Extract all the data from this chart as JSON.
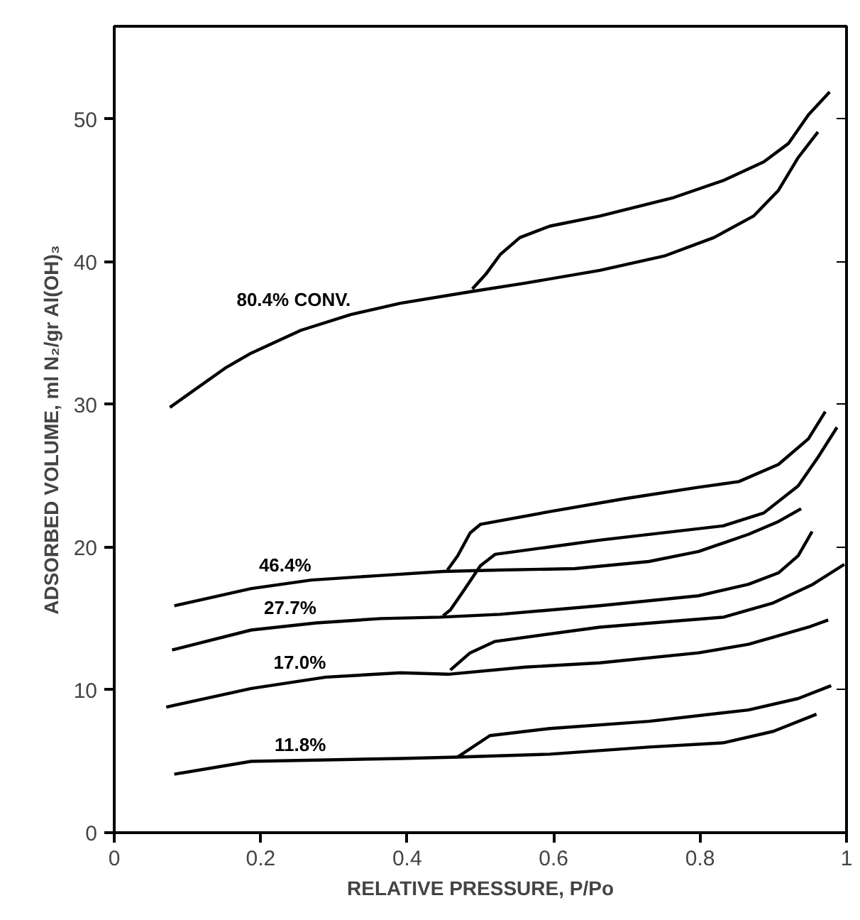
{
  "chart_data": {
    "type": "line",
    "xlabel": "RELATIVE PRESSURE, P/Po",
    "ylabel": "ADSORBED VOLUME, ml N₂/gr Al(OH)₃",
    "xlim": [
      0,
      1
    ],
    "ylim": [
      0,
      56.5
    ],
    "xticks": [
      0,
      0.2,
      0.4,
      0.6,
      0.8,
      1
    ],
    "yticks": [
      0,
      10,
      20,
      30,
      40,
      50
    ],
    "grid": false,
    "series": [
      {
        "name": "80.4% CONV.",
        "color": "#000000",
        "x": [
          0.076,
          0.153,
          0.187,
          0.255,
          0.323,
          0.391,
          0.486,
          0.561,
          0.663,
          0.751,
          0.819,
          0.873,
          0.907,
          0.934,
          0.961
        ],
        "values": [
          29.8,
          32.6,
          33.6,
          35.2,
          36.3,
          37.1,
          37.9,
          38.5,
          39.4,
          40.4,
          41.7,
          43.2,
          45.0,
          47.3,
          49.1
        ]
      },
      {
        "color": "#000000",
        "x": [
          0.489,
          0.507,
          0.527,
          0.554,
          0.595,
          0.663,
          0.764,
          0.832,
          0.887,
          0.921,
          0.948,
          0.977
        ],
        "values": [
          38.1,
          39.1,
          40.5,
          41.7,
          42.5,
          43.2,
          44.5,
          45.7,
          47.0,
          48.3,
          50.3,
          51.9
        ]
      },
      {
        "name": "46.4%",
        "color": "#000000",
        "x": [
          0.082,
          0.187,
          0.269,
          0.357,
          0.449,
          0.527,
          0.629,
          0.73,
          0.798,
          0.866,
          0.907,
          0.938
        ],
        "values": [
          15.9,
          17.1,
          17.7,
          18.0,
          18.3,
          18.4,
          18.5,
          19.0,
          19.7,
          20.9,
          21.8,
          22.7
        ]
      },
      {
        "color": "#000000",
        "x": [
          0.455,
          0.469,
          0.486,
          0.5,
          0.595,
          0.697,
          0.798,
          0.853,
          0.907,
          0.948,
          0.971
        ],
        "values": [
          18.4,
          19.4,
          21.0,
          21.6,
          22.5,
          23.4,
          24.2,
          24.6,
          25.8,
          27.6,
          29.5
        ]
      },
      {
        "name": "27.7%",
        "color": "#000000",
        "x": [
          0.079,
          0.187,
          0.276,
          0.364,
          0.445,
          0.527,
          0.663,
          0.798,
          0.866,
          0.907,
          0.934,
          0.953
        ],
        "values": [
          12.8,
          14.2,
          14.7,
          15.0,
          15.1,
          15.3,
          15.9,
          16.6,
          17.4,
          18.2,
          19.4,
          21.1
        ]
      },
      {
        "color": "#000000",
        "x": [
          0.449,
          0.459,
          0.479,
          0.5,
          0.52,
          0.663,
          0.832,
          0.887,
          0.934,
          0.961,
          0.987
        ],
        "values": [
          15.2,
          15.6,
          17.1,
          18.7,
          19.5,
          20.5,
          21.5,
          22.4,
          24.3,
          26.3,
          28.4
        ]
      },
      {
        "name": "17.0%",
        "color": "#000000",
        "x": [
          0.071,
          0.187,
          0.289,
          0.391,
          0.456,
          0.561,
          0.663,
          0.798,
          0.866,
          0.9,
          0.948,
          0.975
        ],
        "values": [
          8.8,
          10.1,
          10.9,
          11.2,
          11.1,
          11.6,
          11.9,
          12.6,
          13.2,
          13.7,
          14.4,
          14.9
        ]
      },
      {
        "color": "#000000",
        "x": [
          0.459,
          0.486,
          0.52,
          0.663,
          0.832,
          0.9,
          0.954,
          0.997
        ],
        "values": [
          11.4,
          12.6,
          13.4,
          14.4,
          15.1,
          16.1,
          17.4,
          18.8
        ]
      },
      {
        "name": "11.8%",
        "color": "#000000",
        "x": [
          0.082,
          0.187,
          0.289,
          0.391,
          0.469,
          0.595,
          0.73,
          0.832,
          0.9,
          0.959
        ],
        "values": [
          4.1,
          5.0,
          5.1,
          5.2,
          5.3,
          5.5,
          6.0,
          6.3,
          7.1,
          8.3
        ]
      },
      {
        "color": "#000000",
        "x": [
          0.469,
          0.513,
          0.595,
          0.73,
          0.866,
          0.934,
          0.979
        ],
        "values": [
          5.3,
          6.8,
          7.3,
          7.8,
          8.6,
          9.4,
          10.3
        ]
      }
    ]
  }
}
